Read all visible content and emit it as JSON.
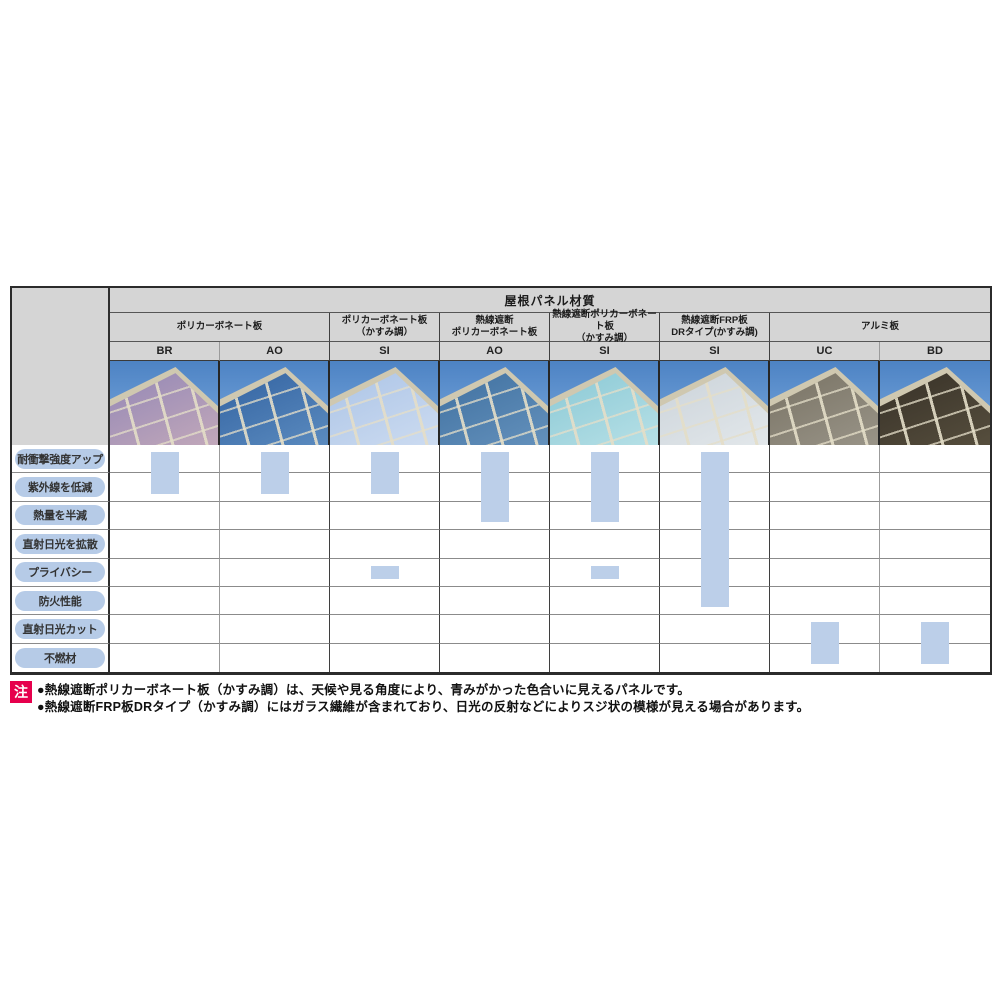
{
  "table": {
    "title": "屋根パネル材質",
    "header_bg": "#d5d5d5",
    "mark_color": "#bccfe9",
    "pill_bg": "#b6cbe7",
    "sky": [
      "#4d83c4",
      "#7ba9de"
    ],
    "frame_color": "#cfc8b0",
    "groups": [
      {
        "label": "ポリカーボネート板",
        "span": 2
      },
      {
        "label": "ポリカーボネート板\n（かすみ調）",
        "span": 1
      },
      {
        "label": "熱線遮断\nポリカーボネート板",
        "span": 1
      },
      {
        "label": "熱線遮断ポリカーボネート板\n（かすみ調）",
        "span": 1
      },
      {
        "label": "熱線遮断FRP板\nDRタイプ(かすみ調)",
        "span": 1
      },
      {
        "label": "アルミ板",
        "span": 2
      }
    ],
    "columns": [
      {
        "code": "BR",
        "panel": [
          "#8f84b5",
          "#c3a9ba"
        ]
      },
      {
        "code": "AO",
        "panel": [
          "#2f5f9e",
          "#5c8cc0"
        ]
      },
      {
        "code": "SI",
        "panel": [
          "#a9c2e5",
          "#cddcf1"
        ]
      },
      {
        "code": "AO",
        "panel": [
          "#3c6d9d",
          "#6592bd"
        ]
      },
      {
        "code": "SI",
        "panel": [
          "#86c6d3",
          "#b8e1e7"
        ]
      },
      {
        "code": "SI",
        "panel": [
          "#c9d1d8",
          "#e3e8eb"
        ]
      },
      {
        "code": "UC",
        "panel": [
          "#756f60",
          "#9a9589"
        ]
      },
      {
        "code": "BD",
        "panel": [
          "#342e25",
          "#574f3e"
        ]
      }
    ],
    "rows": [
      "耐衝撃強度アップ",
      "紫外線を低減",
      "熱量を半減",
      "直射日光を拡散",
      "プライバシー",
      "防火性能",
      "直射日光カット",
      "不燃材"
    ],
    "marks": [
      {
        "col": 0,
        "row_start": 1,
        "row_end": 2
      },
      {
        "col": 1,
        "row_start": 1,
        "row_end": 2
      },
      {
        "col": 2,
        "row_start": 1,
        "row_end": 2
      },
      {
        "col": 2,
        "row_start": 5,
        "row_end": 5
      },
      {
        "col": 3,
        "row_start": 1,
        "row_end": 3
      },
      {
        "col": 4,
        "row_start": 1,
        "row_end": 3
      },
      {
        "col": 4,
        "row_start": 5,
        "row_end": 5
      },
      {
        "col": 5,
        "row_start": 1,
        "row_end": 6
      },
      {
        "col": 6,
        "row_start": 7,
        "row_end": 8
      },
      {
        "col": 7,
        "row_start": 7,
        "row_end": 8
      }
    ]
  },
  "notes": {
    "badge": "注",
    "badge_color": "#e6004d",
    "items": [
      "●熱線遮断ポリカーボネート板（かすみ調）は、天候や見る角度により、青みがかった色合いに見えるパネルです。",
      "●熱線遮断FRP板DRタイプ（かすみ調）にはガラス繊維が含まれており、日光の反射などによりスジ状の模様が見える場合があります。"
    ]
  }
}
